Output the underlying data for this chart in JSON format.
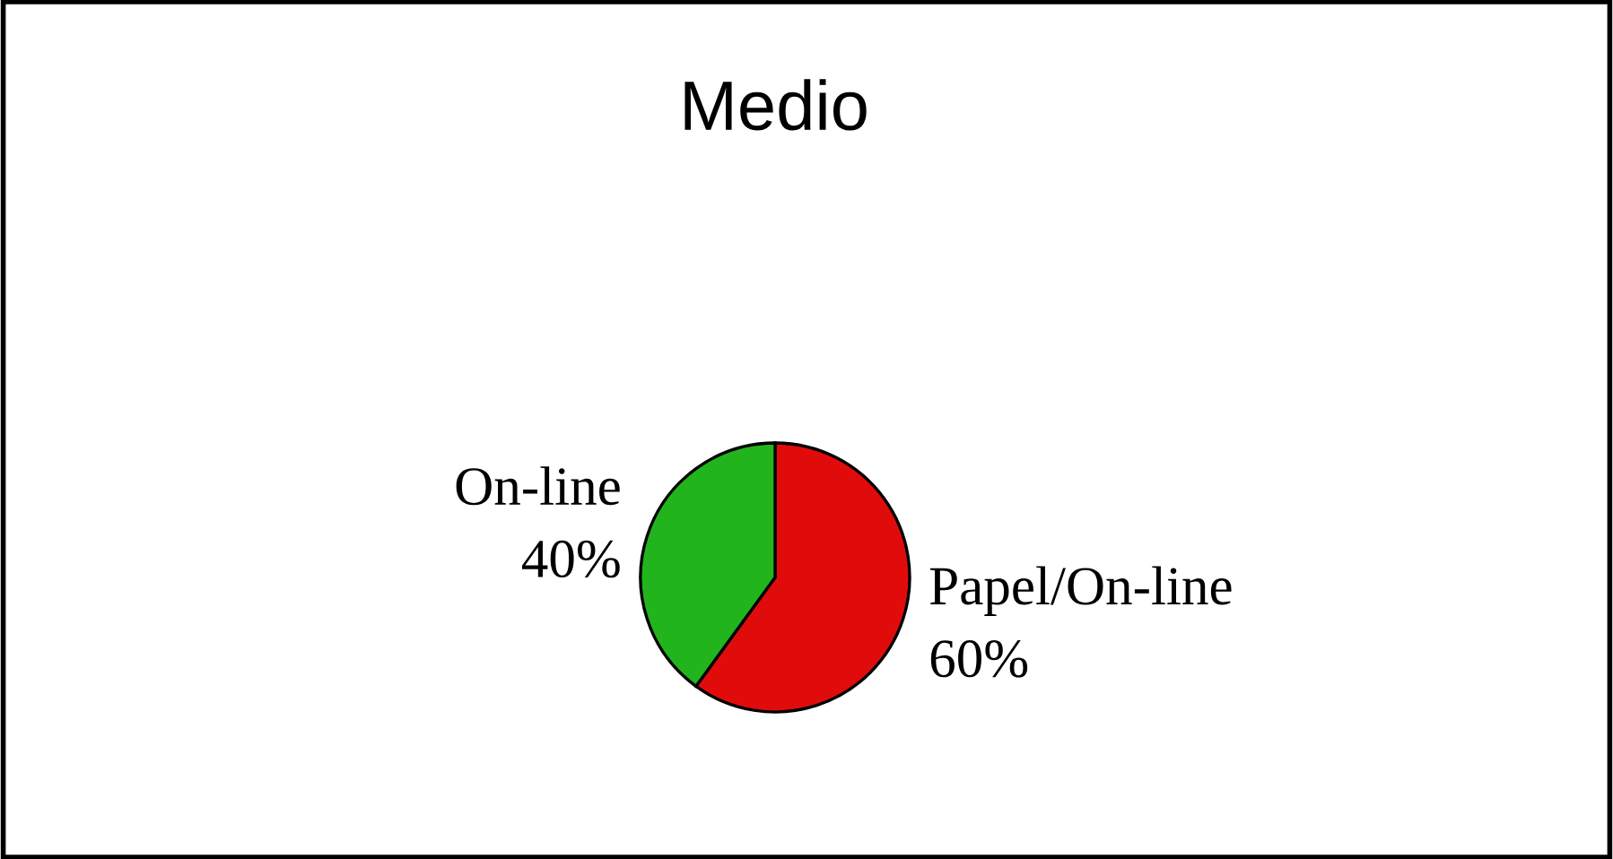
{
  "chart_data": {
    "type": "pie",
    "title": "Medio",
    "categories": [
      "Papel/On-line",
      "On-line"
    ],
    "values": [
      60,
      40
    ],
    "colors": [
      "#e00c0c",
      "#22b41c"
    ],
    "value_labels": [
      "60%",
      "40%"
    ],
    "legend": false
  }
}
